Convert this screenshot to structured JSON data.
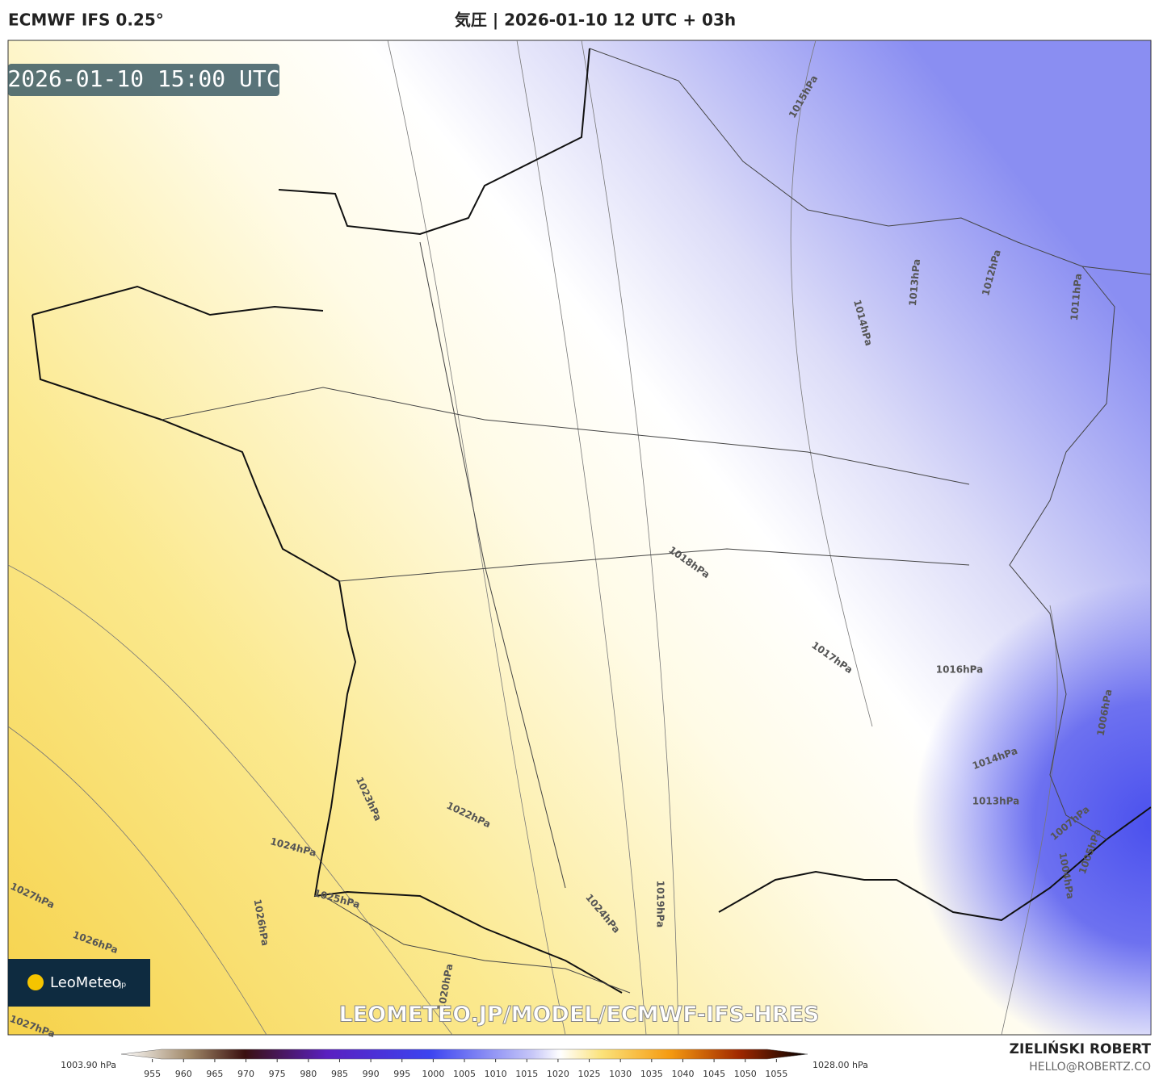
{
  "header": {
    "model": "ECMWF IFS 0.25°",
    "title": "気圧 | 2026-01-10 12 UTC + 03h"
  },
  "map": {
    "timestamp": "2026-01-10 15:00 UTC",
    "watermark": "LEOMETEO.JP/MODEL/ECMWF-IFS-HRES",
    "logo": {
      "name": "LeoMeteo",
      "suffix": ".jp"
    },
    "isobar_labels": [
      "1015hPa",
      "1013hPa",
      "1012hPa",
      "1014hPa",
      "1011hPa",
      "1018hPa",
      "1017hPa",
      "1016hPa",
      "1006hPa",
      "1014hPa",
      "1013hPa",
      "1023hPa",
      "1022hPa",
      "1024hPa",
      "1025hPa",
      "1024hPa",
      "1019hPa",
      "1027hPa",
      "1026hPa",
      "1026hPa",
      "1020hPa",
      "1027hPa",
      "1007hPa",
      "1005hPa",
      "1004hPa"
    ]
  },
  "colorbar": {
    "min_label": "1003.90 hPa",
    "max_label": "1028.00 hPa",
    "range": [
      950,
      1060
    ],
    "ticks": [
      955,
      960,
      965,
      970,
      975,
      980,
      985,
      990,
      995,
      1000,
      1005,
      1010,
      1015,
      1020,
      1025,
      1030,
      1035,
      1040,
      1045,
      1050,
      1055
    ]
  },
  "footer": {
    "author": "ZIELIŃSKI ROBERT",
    "contact": "HELLO@ROBERTZ.CO"
  }
}
